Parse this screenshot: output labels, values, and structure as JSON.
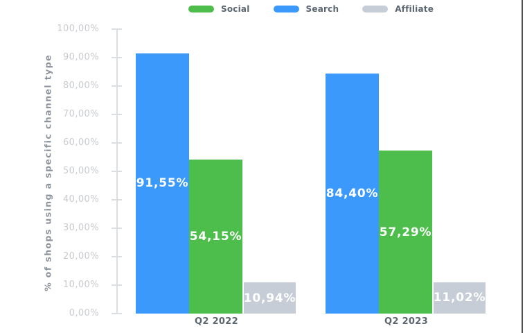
{
  "chart_data": {
    "type": "bar",
    "title": "",
    "xlabel": "",
    "ylabel": "% of shops using a specific channel type",
    "categories": [
      "Q2 2022",
      "Q2 2023"
    ],
    "series": [
      {
        "name": "Search",
        "color": "#3B99FC",
        "values": [
          91.55,
          84.4
        ],
        "value_labels": [
          "91,55%",
          "84,40%"
        ]
      },
      {
        "name": "Social",
        "color": "#4DBE4C",
        "values": [
          54.15,
          57.29
        ],
        "value_labels": [
          "54,15%",
          "57,29%"
        ]
      },
      {
        "name": "Affiliate",
        "color": "#C6CDD6",
        "values": [
          10.94,
          11.02
        ],
        "value_labels": [
          "10,94%",
          "11,02%"
        ]
      }
    ],
    "legend": {
      "position": "top",
      "items": [
        {
          "label": "Social",
          "color": "#4DBE4C"
        },
        {
          "label": "Search",
          "color": "#3B99FC"
        },
        {
          "label": "Affiliate",
          "color": "#C6CDD6"
        }
      ]
    },
    "y_ticks": [
      "100,00%",
      "90,00%",
      "80,00%",
      "70,00%",
      "60,00%",
      "50,00%",
      "40,00%",
      "30,00%",
      "20,00%",
      "10,00%",
      "0,00%"
    ],
    "ylim": [
      0,
      100
    ],
    "grid": "ticks-only",
    "value_label_color": "#FFFFFF"
  }
}
